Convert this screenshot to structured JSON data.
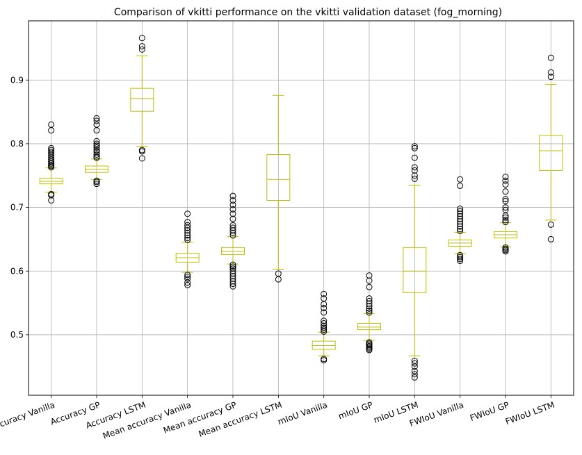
{
  "chart_data": {
    "type": "box",
    "title": "Comparison of vkitti performance on the vkitti validation dataset (fog_morning)",
    "xlabel": "",
    "ylabel": "",
    "ylim": [
      0.405,
      0.993
    ],
    "yticks": [
      0.5,
      0.6,
      0.7,
      0.8,
      0.9
    ],
    "ytick_labels": [
      "0.5",
      "0.6",
      "0.7",
      "0.8",
      "0.9"
    ],
    "grid": true,
    "box_color": "#bfbf00",
    "outlier_color": "#000000",
    "categories": [
      "Accuracy Vanilla",
      "Accuracy GP",
      "Accuracy LSTM",
      "Mean accuracy Vanilla",
      "Mean accuracy GP",
      "Mean accuracy LSTM",
      "mIoU Vanilla",
      "mIoU GP",
      "mIoU LSTM",
      "FWIoU Vanilla",
      "FWIoU GP",
      "FWIoU LSTM"
    ],
    "boxes": [
      {
        "whislo": 0.724,
        "q1": 0.737,
        "med": 0.741,
        "q3": 0.746,
        "whishi": 0.762,
        "fliers": [
          0.711,
          0.719,
          0.721,
          0.763,
          0.765,
          0.767,
          0.769,
          0.772,
          0.775,
          0.778,
          0.781,
          0.784,
          0.787,
          0.79,
          0.793,
          0.821,
          0.83
        ]
      },
      {
        "whislo": 0.744,
        "q1": 0.755,
        "med": 0.76,
        "q3": 0.765,
        "whishi": 0.776,
        "fliers": [
          0.737,
          0.74,
          0.742,
          0.778,
          0.78,
          0.783,
          0.787,
          0.79,
          0.794,
          0.797,
          0.8,
          0.804,
          0.821,
          0.83,
          0.836,
          0.84
        ]
      },
      {
        "whislo": 0.796,
        "q1": 0.851,
        "med": 0.871,
        "q3": 0.887,
        "whishi": 0.938,
        "fliers": [
          0.777,
          0.788,
          0.79,
          0.948,
          0.953,
          0.966
        ]
      },
      {
        "whislo": 0.598,
        "q1": 0.614,
        "med": 0.621,
        "q3": 0.628,
        "whishi": 0.645,
        "fliers": [
          0.578,
          0.582,
          0.588,
          0.591,
          0.594,
          0.649,
          0.652,
          0.656,
          0.66,
          0.664,
          0.668,
          0.672,
          0.677,
          0.69
        ]
      },
      {
        "whislo": 0.611,
        "q1": 0.626,
        "med": 0.631,
        "q3": 0.637,
        "whishi": 0.654,
        "fliers": [
          0.576,
          0.58,
          0.584,
          0.588,
          0.592,
          0.596,
          0.6,
          0.604,
          0.607,
          0.61,
          0.656,
          0.66,
          0.664,
          0.668,
          0.672,
          0.682,
          0.69,
          0.697,
          0.704,
          0.711,
          0.718
        ]
      },
      {
        "whislo": 0.603,
        "q1": 0.711,
        "med": 0.744,
        "q3": 0.783,
        "whishi": 0.876,
        "fliers": [
          0.587,
          0.596
        ]
      },
      {
        "whislo": 0.467,
        "q1": 0.477,
        "med": 0.483,
        "q3": 0.49,
        "whishi": 0.504,
        "fliers": [
          0.46,
          0.462,
          0.505,
          0.508,
          0.511,
          0.514,
          0.518,
          0.522,
          0.535,
          0.542,
          0.548,
          0.557,
          0.564
        ]
      },
      {
        "whislo": 0.491,
        "q1": 0.508,
        "med": 0.512,
        "q3": 0.518,
        "whishi": 0.533,
        "fliers": [
          0.476,
          0.478,
          0.48,
          0.482,
          0.484,
          0.486,
          0.488,
          0.535,
          0.538,
          0.541,
          0.545,
          0.549,
          0.553,
          0.557,
          0.575,
          0.585,
          0.593
        ]
      },
      {
        "whislo": 0.467,
        "q1": 0.566,
        "med": 0.6,
        "q3": 0.637,
        "whishi": 0.735,
        "fliers": [
          0.433,
          0.438,
          0.443,
          0.45,
          0.455,
          0.459,
          0.745,
          0.75,
          0.758,
          0.763,
          0.778,
          0.793,
          0.796
        ]
      },
      {
        "whislo": 0.627,
        "q1": 0.639,
        "med": 0.644,
        "q3": 0.649,
        "whishi": 0.661,
        "fliers": [
          0.616,
          0.619,
          0.622,
          0.625,
          0.663,
          0.666,
          0.67,
          0.674,
          0.678,
          0.682,
          0.686,
          0.69,
          0.694,
          0.698,
          0.734,
          0.744
        ]
      },
      {
        "whislo": 0.638,
        "q1": 0.652,
        "med": 0.657,
        "q3": 0.662,
        "whishi": 0.676,
        "fliers": [
          0.631,
          0.633,
          0.635,
          0.637,
          0.677,
          0.68,
          0.684,
          0.687,
          0.696,
          0.7,
          0.71,
          0.713,
          0.725,
          0.736,
          0.742,
          0.748
        ]
      },
      {
        "whislo": 0.68,
        "q1": 0.758,
        "med": 0.789,
        "q3": 0.813,
        "whishi": 0.893,
        "fliers": [
          0.65,
          0.673,
          0.905,
          0.912,
          0.935
        ]
      }
    ]
  }
}
